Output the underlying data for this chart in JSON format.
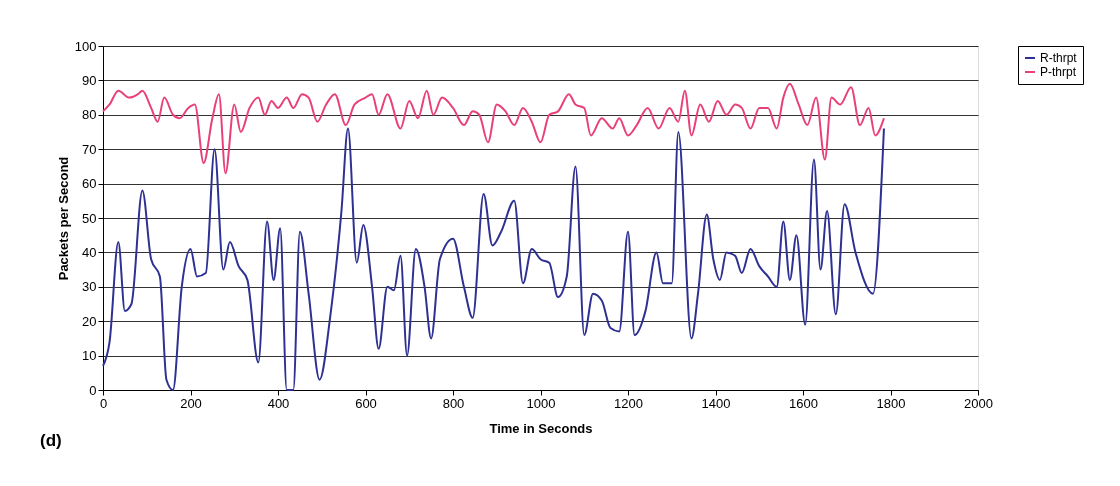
{
  "chart_data": {
    "type": "line",
    "xlabel": "Time in Seconds",
    "ylabel": "Packets per Second",
    "annotations": [
      "(d)"
    ],
    "xlim": [
      0,
      2000
    ],
    "xticks": [
      0,
      200,
      400,
      600,
      800,
      1000,
      1200,
      1400,
      1600,
      1800,
      2000
    ],
    "ylim": [
      0,
      100
    ],
    "yticks": [
      0,
      10,
      20,
      30,
      40,
      50,
      60,
      70,
      80,
      90,
      100
    ],
    "grid": "y",
    "legend": "right",
    "marker": "none",
    "line_style": "solid",
    "series": [
      {
        "name": "R-thrpt",
        "color": "#2e3192",
        "x": [
          0,
          15,
          35,
          50,
          65,
          90,
          110,
          130,
          145,
          160,
          180,
          200,
          215,
          235,
          255,
          275,
          290,
          310,
          330,
          355,
          375,
          390,
          405,
          420,
          435,
          450,
          470,
          495,
          520,
          545,
          560,
          580,
          595,
          615,
          630,
          650,
          665,
          680,
          695,
          715,
          735,
          750,
          770,
          800,
          825,
          845,
          870,
          890,
          910,
          940,
          960,
          980,
          1000,
          1020,
          1040,
          1060,
          1080,
          1100,
          1120,
          1140,
          1160,
          1180,
          1200,
          1215,
          1240,
          1265,
          1280,
          1300,
          1315,
          1345,
          1360,
          1380,
          1395,
          1410,
          1425,
          1445,
          1460,
          1480,
          1500,
          1520,
          1540,
          1555,
          1570,
          1585,
          1605,
          1625,
          1640,
          1655,
          1675,
          1695,
          1720,
          1760,
          1785
        ],
        "values": [
          7,
          14,
          43,
          23,
          25,
          58,
          38,
          33,
          3,
          0,
          30,
          41,
          33,
          34,
          70,
          35,
          43,
          36,
          32,
          8,
          49,
          32,
          47,
          0,
          0,
          46,
          28,
          3,
          22,
          52,
          76,
          37,
          48,
          30,
          12,
          30,
          29,
          39,
          10,
          41,
          30,
          15,
          38,
          44,
          30,
          21,
          57,
          42,
          46,
          55,
          31,
          41,
          38,
          37,
          27,
          33,
          65,
          16,
          28,
          26,
          18,
          17,
          46,
          16,
          23,
          40,
          31,
          31,
          75,
          15,
          28,
          51,
          38,
          32,
          40,
          39,
          34,
          41,
          36,
          33,
          30,
          49,
          32,
          45,
          19,
          67,
          35,
          52,
          22,
          54,
          40,
          28,
          76
        ]
      },
      {
        "name": "P-thrpt",
        "color": "#e8407a",
        "x": [
          0,
          15,
          35,
          60,
          80,
          90,
          110,
          125,
          140,
          160,
          175,
          195,
          210,
          230,
          250,
          265,
          280,
          300,
          315,
          335,
          355,
          370,
          385,
          400,
          420,
          435,
          455,
          470,
          490,
          510,
          530,
          555,
          575,
          600,
          615,
          630,
          650,
          680,
          700,
          720,
          740,
          755,
          775,
          800,
          825,
          845,
          860,
          880,
          900,
          920,
          940,
          960,
          980,
          1000,
          1020,
          1040,
          1065,
          1080,
          1100,
          1115,
          1140,
          1165,
          1180,
          1200,
          1220,
          1245,
          1270,
          1295,
          1315,
          1330,
          1345,
          1365,
          1385,
          1405,
          1425,
          1445,
          1460,
          1480,
          1500,
          1520,
          1540,
          1555,
          1570,
          1590,
          1610,
          1630,
          1650,
          1665,
          1685,
          1710,
          1730,
          1750,
          1765,
          1785
        ],
        "values": [
          81,
          83,
          87,
          85,
          86,
          87,
          82,
          78,
          85,
          80,
          79,
          82,
          83,
          66,
          79,
          86,
          63,
          83,
          75,
          82,
          85,
          80,
          84,
          82,
          85,
          82,
          86,
          85,
          78,
          83,
          86,
          77,
          83,
          85,
          86,
          80,
          86,
          76,
          84,
          79,
          87,
          80,
          85,
          82,
          77,
          81,
          80,
          72,
          83,
          81,
          77,
          82,
          78,
          72,
          80,
          81,
          86,
          83,
          82,
          74,
          79,
          76,
          79,
          74,
          77,
          82,
          76,
          82,
          78,
          87,
          74,
          83,
          78,
          84,
          80,
          83,
          82,
          76,
          82,
          82,
          76,
          85,
          89,
          83,
          77,
          85,
          67,
          85,
          83,
          88,
          77,
          82,
          74,
          79
        ]
      }
    ]
  }
}
